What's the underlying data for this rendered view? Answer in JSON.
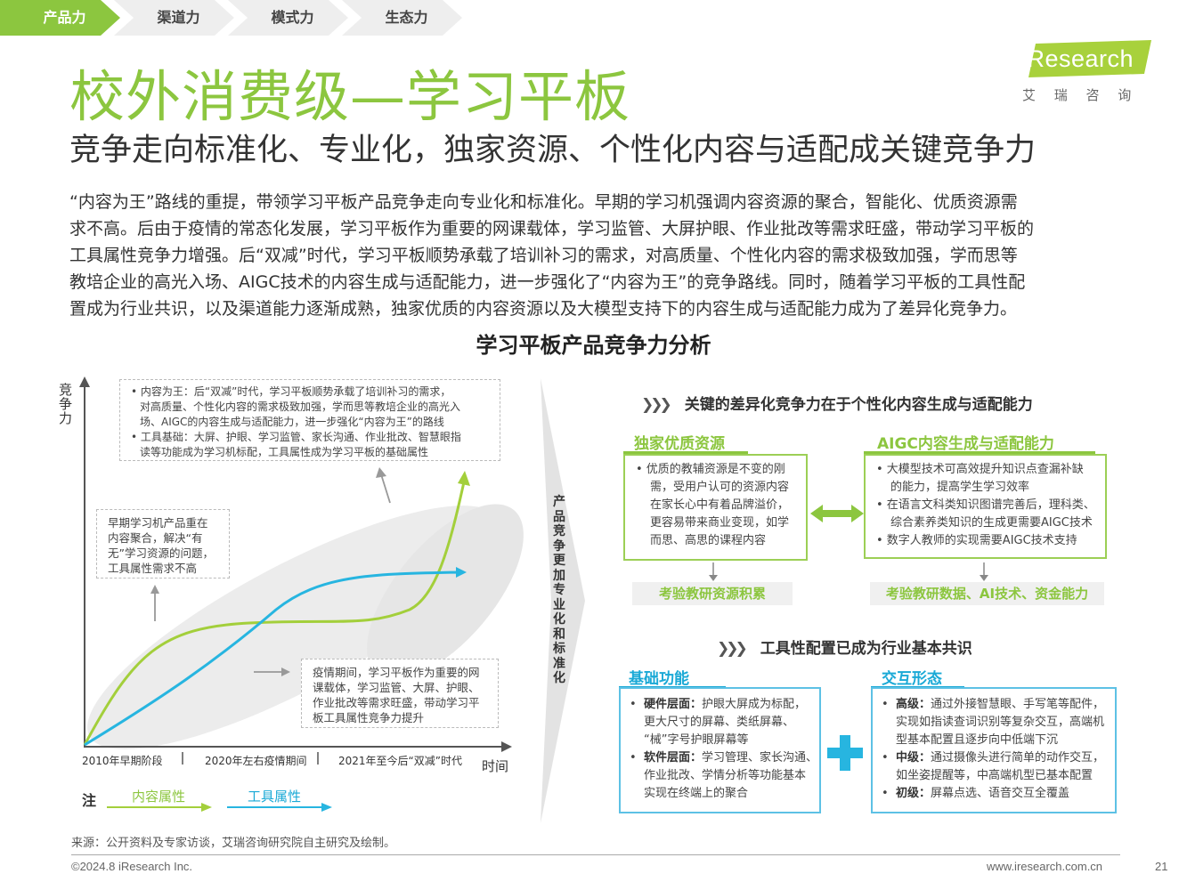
{
  "tabs": [
    "产品力",
    "渠道力",
    "模式力",
    "生态力"
  ],
  "brand": {
    "logo": "iResearch",
    "cn": "艾 瑞 咨 询"
  },
  "title": "校外消费级—学习平板",
  "subtitle": "竞争走向标准化、专业化，独家资源、个性化内容与适配成关键竞争力",
  "paragraph": [
    "“内容为王”路线的重提，带领学习平板产品竞争走向专业化和标准化。早期的学习机强调内容资源的聚合，智能化、优质资源需",
    "求不高。后由于疫情的常态化发展，学习平板作为重要的网课载体，学习监管、大屏护眼、作业批改等需求旺盛，带动学习平板的",
    "工具属性竞争力增强。后“双减”时代，学习平板顺势承载了培训补习的需求，对高质量、个性化内容的需求极致加强，学而思等",
    "教培企业的高光入场、AIGC技术的内容生成与适配能力，进一步强化了“内容为王”的竞争路线。同时，随着学习平板的工具性配",
    "置成为行业共识，以及渠道能力逐渐成熟，独家优质的内容资源以及大模型支持下的内容生成与适配能力成为了差异化竞争力。"
  ],
  "chart_title": "学习平板产品竞争力分析",
  "left_chart": {
    "ylabel": [
      "竞",
      "争",
      "力"
    ],
    "xlabel": "时间",
    "periods": [
      "2010年早期阶段",
      "2020年左右疫情期间",
      "2021年至今后“双减”时代"
    ],
    "note_top": [
      "• 内容为王：后“双减”时代，学习平板顺势承载了培训补习的需求，",
      "对高质量、个性化内容的需求极致加强，学而思等教培企业的高光入",
      "场、AIGC的内容生成与适配能力，进一步强化“内容为王”的路线",
      "• 工具基础：大屏、护眼、学习监管、家长沟通、作业批改、智慧眼指",
      "读等功能成为学习机标配，工具属性成为学习平板的基础属性"
    ],
    "note_left": [
      "早期学习机产品重在",
      "内容聚合，解决“有",
      "无”学习资源的问题，",
      "工具属性需求不高"
    ],
    "note_right": [
      "疫情期间，学习平板作为重要的网",
      "课载体，学习监管、大屏、护眼、",
      "作业批改等需求旺盛，带动学习平",
      "板工具属性竞争力提升"
    ],
    "legend_label": "注",
    "legend": [
      {
        "name": "内容属性",
        "color": "#a3cf3b"
      },
      {
        "name": "工具属性",
        "color": "#27b5e0"
      }
    ]
  },
  "arrow_text": [
    "产",
    "品",
    "竞",
    "争",
    "更",
    "加",
    "专",
    "业",
    "化",
    "和",
    "标",
    "准",
    "化"
  ],
  "right": {
    "section1": "关键的差异化竞争力在于个性化内容生成与适配能力",
    "box1_title": "独家优质资源",
    "box1_lines": [
      "•  优质的教辅资源是不变的刚",
      "需，受用户认可的资源内容",
      "在家长心中有着品牌溢价，",
      "更容易带来商业变现，如学",
      "而思、高思的课程内容"
    ],
    "box2_title": "AIGC内容生成与适配能力",
    "box2_lines": [
      "•  大模型技术可高效提升知识点查漏补缺",
      "的能力，提高学生学习效率",
      "•  在语言文科类知识图谱完善后，理科类、",
      "综合素养类知识的生成更需要AIGC技术",
      "•  数字人教师的实现需要AIGC技术支持"
    ],
    "pill1": "考验教研资源积累",
    "pill2": "考验教研数据、AI技术、资金能力",
    "section2": "工具性配置已成为行业基本共识",
    "box3_title": "基础功能",
    "box3_lines": [
      "硬件层面：",
      "护眼大屏成为标配，",
      "更大尺寸的屏幕、类纸屏幕、",
      "“械”字号护眼屏幕等",
      "软件层面：",
      "学习管理、家长沟通、",
      "作业批改、学情分析等功能基本",
      "实现在终端上的聚合"
    ],
    "box4_title": "交互形态",
    "box4_lines": [
      "高级：",
      "通过外接智慧眼、手写笔等配件，",
      "实现如指读查词识别等复杂交互，高端机",
      "型基本配置且逐步向中低端下沉",
      "中级：",
      "通过摄像头进行简单的动作交互，",
      "如坐姿提醒等，中高端机型已基本配置",
      "初级：",
      "屏幕点选、语音交互全覆盖"
    ]
  },
  "source": "来源：公开资料及专家访谈，艾瑞咨询研究院自主研究及绘制。",
  "copyright": "©2024.8 iResearch Inc.",
  "website": "www.iresearch.com.cn",
  "page_number": "21",
  "colors": {
    "green": "#8cc63f",
    "blue": "#1aa9d6"
  }
}
